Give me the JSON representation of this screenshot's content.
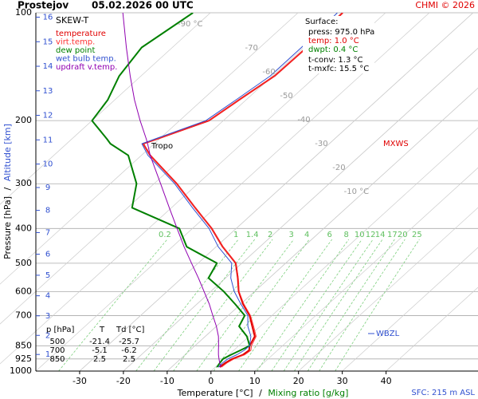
{
  "title": "Prostejov",
  "datetime": "05.02.2026 00 UTC",
  "credit": "CHMI © 2026",
  "chart_data": {
    "type": "skewt",
    "subtitle": "SKEW-T",
    "xlabel": [
      "Temperature [°C]",
      "/",
      "Mixing ratio [g/kg]"
    ],
    "ylabel": [
      "Pressure [hPa]",
      "/",
      "Altitude [km]"
    ],
    "log_y": true,
    "grid": true,
    "ylim": [
      1000,
      100
    ],
    "yticks": [
      1000,
      925,
      850,
      700,
      600,
      500,
      400,
      300,
      200,
      100
    ],
    "xlim": [
      -40,
      61
    ],
    "xticks": [
      -30,
      -20,
      -10,
      0,
      10,
      20,
      30,
      40
    ],
    "altitude_ticks": [
      1,
      2,
      3,
      4,
      5,
      6,
      7,
      8,
      9,
      10,
      11,
      12,
      13,
      14,
      15,
      16
    ],
    "isotherm_labels": [
      {
        "value": -90,
        "label": "-90 °C"
      },
      -70,
      -60,
      -50,
      -40,
      -30,
      -20,
      {
        "value": -10,
        "label": "-10 °C"
      }
    ],
    "mixing_ratios": [
      0.2,
      1,
      1.4,
      2,
      3,
      4,
      6,
      8,
      10,
      12,
      14,
      17,
      20,
      25
    ],
    "pressure": [
      975,
      950,
      925,
      900,
      875,
      850,
      800,
      750,
      700,
      650,
      600,
      550,
      500,
      450,
      400,
      350,
      300,
      250,
      232,
      225,
      200,
      175,
      150,
      125,
      100
    ],
    "series": [
      {
        "name": "temperature",
        "color": "#e00000",
        "values": [
          1.0,
          1.2,
          1.8,
          3.2,
          3.5,
          2.5,
          1.3,
          -1.8,
          -5.1,
          -9.5,
          -13.6,
          -17.2,
          -21.4,
          -28.5,
          -35.6,
          -44.6,
          -54.8,
          -68.0,
          -72.5,
          -70.5,
          -63.3,
          -61.6,
          -59.5,
          -59.3,
          -59.8
        ]
      },
      {
        "name": "virt.temp.",
        "color": "#ff3030",
        "values": [
          1.4,
          1.6,
          2.2,
          3.6,
          3.9,
          2.9,
          1.6,
          -1.5,
          -4.9,
          -9.3,
          -13.5,
          -17.1,
          -21.3,
          -28.5,
          -35.6,
          -44.6,
          -54.8,
          -68.0,
          -72.5,
          -70.5,
          -63.3,
          -61.6,
          -59.5,
          -59.3,
          -59.8
        ]
      },
      {
        "name": "dew point",
        "color": "#008000",
        "values": [
          0.4,
          0.0,
          -0.3,
          0.5,
          1.5,
          2.5,
          -0.5,
          -4.8,
          -6.2,
          -11.3,
          -17.0,
          -23.9,
          -25.7,
          -36.7,
          -43.0,
          -59.0,
          -64.0,
          -73.0,
          -80.0,
          -82.0,
          -90.0,
          -91.6,
          -95.0,
          -97.0,
          -94.0
        ]
      },
      {
        "name": "wet bulb temp.",
        "color": "#3050d0",
        "values": [
          0.7,
          0.6,
          0.8,
          1.8,
          2.4,
          2.5,
          0.4,
          -2.8,
          -5.5,
          -10.0,
          -14.6,
          -18.8,
          -22.3,
          -29.5,
          -36.2,
          -45.2,
          -55.3,
          -68.5,
          -72.8,
          -71.0,
          -64.0,
          -62.3,
          -60.5,
          -60.5,
          -61.0
        ]
      },
      {
        "name": "updraft v.temp.",
        "color": "#9000b0",
        "values": [
          1.3,
          0.0,
          -1.2,
          -2.4,
          -3.5,
          -4.6,
          -7.0,
          -10.0,
          -13.5,
          -17.2,
          -21.5,
          -26.2,
          -31.5,
          -37.3,
          -43.5,
          -50.5,
          -58.5,
          -68.0,
          -71.5,
          -73.0,
          -79.0,
          -85.5,
          -92.5,
          -100.5,
          -110.0
        ]
      }
    ],
    "annotations": {
      "tropo": "Tropo",
      "mxws": "MXWS",
      "wbzl": "WBZL",
      "sfc": "SFC: 215 m ASL"
    },
    "surface": [
      "Surface:",
      "press: 975.0 hPa",
      "temp: 1.0 °C",
      "dwpt: 0.4 °C",
      "t-conv: 1.3 °C",
      "t-mxfc: 15.5 °C"
    ],
    "table": {
      "header": [
        "p [hPa]",
        "T",
        "Td [°C]"
      ],
      "rows": [
        [
          "500",
          "-21.4",
          "-25.7"
        ],
        [
          "700",
          "-5.1",
          "-6.2"
        ],
        [
          "850",
          "2.5",
          "2.5"
        ]
      ]
    }
  }
}
